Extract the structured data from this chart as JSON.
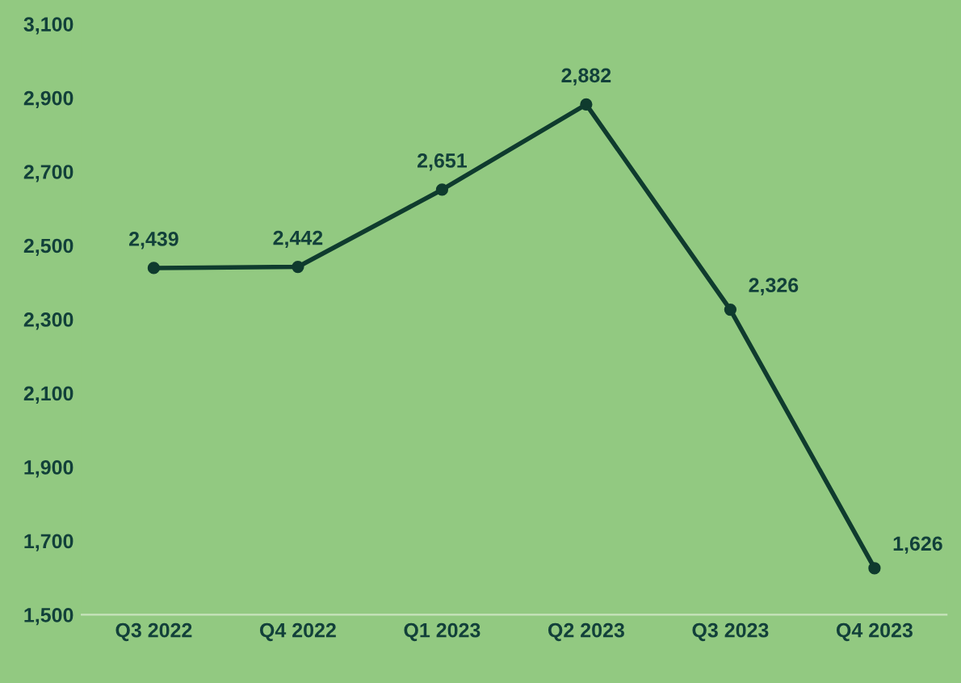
{
  "chart_data": {
    "type": "line",
    "categories": [
      "Q3 2022",
      "Q4 2022",
      "Q1 2023",
      "Q2 2023",
      "Q3 2023",
      "Q4 2023"
    ],
    "series": [
      {
        "color": "#0f3b2e",
        "values": [
          2439,
          2442,
          2651,
          2882,
          2326,
          1626
        ],
        "value_labels": [
          "2,439",
          "2,442",
          "2,651",
          "2,882",
          "2,326",
          "1,626"
        ]
      }
    ],
    "ylim": [
      1500,
      3100
    ],
    "yticks": [
      {
        "value": 1500,
        "label": "1,500"
      },
      {
        "value": 1700,
        "label": "1,700"
      },
      {
        "value": 1900,
        "label": "1,900"
      },
      {
        "value": 2100,
        "label": "2,100"
      },
      {
        "value": 2300,
        "label": "2,300"
      },
      {
        "value": 2500,
        "label": "2,500"
      },
      {
        "value": 2700,
        "label": "2,700"
      },
      {
        "value": 2900,
        "label": "2,900"
      },
      {
        "value": 3100,
        "label": "3,100"
      }
    ],
    "grid": false,
    "marker": "circle",
    "line_style": "solid",
    "legend": false
  }
}
